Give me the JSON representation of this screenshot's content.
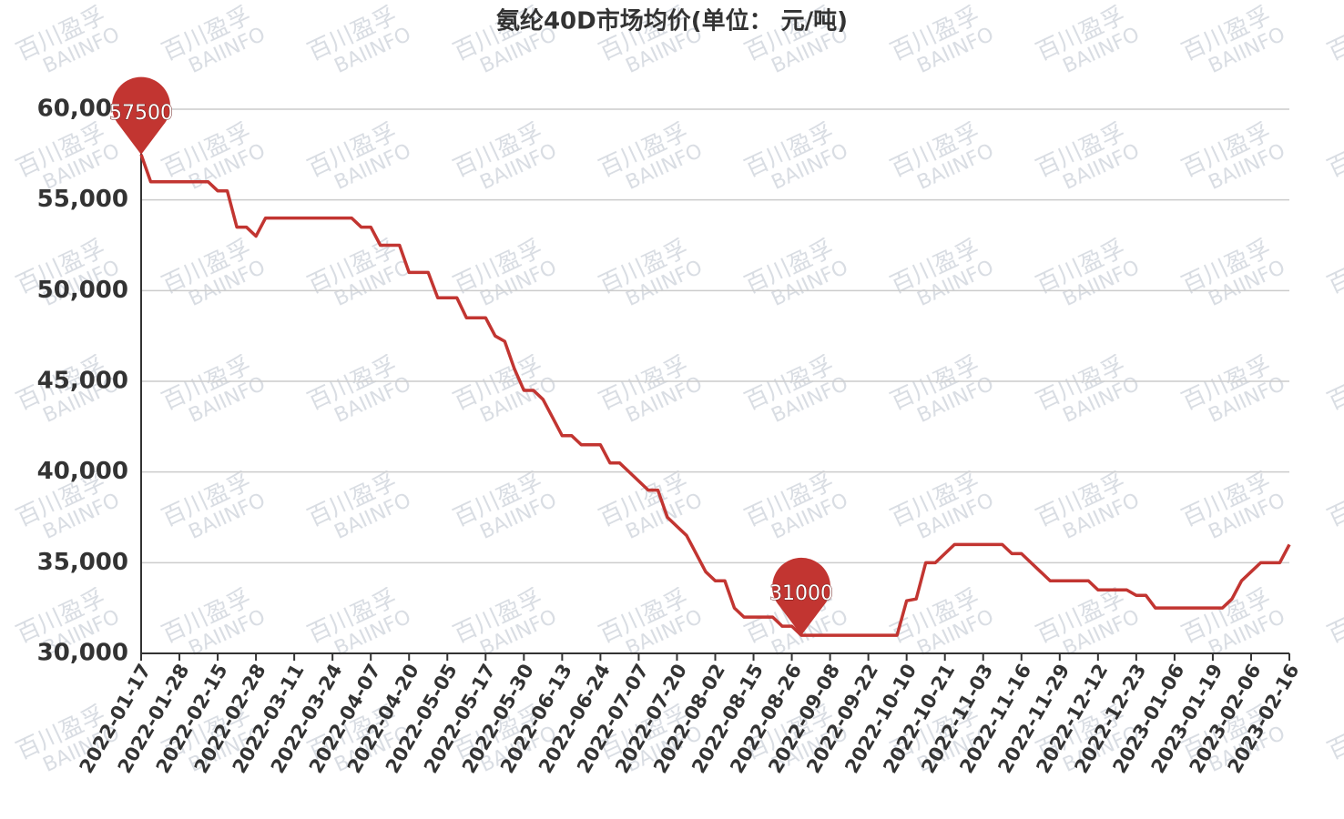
{
  "chart_data": {
    "type": "line",
    "title": "氨纶40D市场均价(单位：  元/吨)",
    "watermark": [
      "百川盈孚",
      "BAIINFO"
    ],
    "categories": [
      "2022-01-17",
      null,
      null,
      null,
      "2022-01-28",
      null,
      null,
      null,
      "2022-02-15",
      null,
      null,
      null,
      "2022-02-28",
      null,
      null,
      null,
      "2022-03-11",
      null,
      null,
      null,
      "2022-03-24",
      null,
      null,
      null,
      "2022-04-07",
      null,
      null,
      null,
      "2022-04-20",
      null,
      null,
      null,
      "2022-05-05",
      null,
      null,
      null,
      "2022-05-17",
      null,
      null,
      null,
      "2022-05-30",
      null,
      null,
      null,
      "2022-06-13",
      null,
      null,
      null,
      "2022-06-24",
      null,
      null,
      null,
      "2022-07-07",
      null,
      null,
      null,
      "2022-07-20",
      null,
      null,
      null,
      "2022-08-02",
      null,
      null,
      null,
      "2022-08-15",
      null,
      null,
      null,
      "2022-08-26",
      null,
      null,
      null,
      "2022-09-08",
      null,
      null,
      null,
      "2022-09-22",
      null,
      null,
      null,
      "2022-10-10",
      null,
      null,
      null,
      "2022-10-21",
      null,
      null,
      null,
      "2022-11-03",
      null,
      null,
      null,
      "2022-11-16",
      null,
      null,
      null,
      "2022-11-29",
      null,
      null,
      null,
      "2022-12-12",
      null,
      null,
      null,
      "2022-12-23",
      null,
      null,
      null,
      "2023-01-06",
      null,
      null,
      null,
      "2023-01-19",
      null,
      null,
      null,
      "2023-02-06",
      null,
      null,
      null,
      "2023-02-16"
    ],
    "series": [
      {
        "name": "氨纶40D",
        "color": "#c23531",
        "values": [
          57500,
          56000,
          56000,
          56000,
          56000,
          56000,
          56000,
          56000,
          55500,
          55500,
          53500,
          53500,
          53000,
          54000,
          54000,
          54000,
          54000,
          54000,
          54000,
          54000,
          54000,
          54000,
          54000,
          53500,
          53500,
          52500,
          52500,
          52500,
          51000,
          51000,
          51000,
          49600,
          49600,
          49600,
          48500,
          48500,
          48500,
          47500,
          47200,
          45700,
          44500,
          44500,
          44000,
          43000,
          42000,
          42000,
          41500,
          41500,
          41500,
          40500,
          40500,
          40000,
          39500,
          39000,
          39000,
          37500,
          37000,
          36500,
          35500,
          34500,
          34000,
          34000,
          32500,
          32000,
          32000,
          32000,
          32000,
          31500,
          31500,
          31000,
          31000,
          31000,
          31000,
          31000,
          31000,
          31000,
          31000,
          31000,
          31000,
          31000,
          32900,
          33000,
          35000,
          35000,
          35500,
          36000,
          36000,
          36000,
          36000,
          36000,
          36000,
          35500,
          35500,
          35000,
          34500,
          34000,
          34000,
          34000,
          34000,
          34000,
          33500,
          33500,
          33500,
          33500,
          33200,
          33200,
          32500,
          32500,
          32500,
          32500,
          32500,
          32500,
          32500,
          32500,
          33000,
          34000,
          34500,
          35000,
          35000,
          35000,
          36000
        ]
      }
    ],
    "ylim": [
      30000,
      60000
    ],
    "yticks": [
      {
        "value": 30000,
        "label": "30,000"
      },
      {
        "value": 35000,
        "label": "35,000"
      },
      {
        "value": 40000,
        "label": "40,000"
      },
      {
        "value": 45000,
        "label": "45,000"
      },
      {
        "value": 50000,
        "label": "50,000"
      },
      {
        "value": 55000,
        "label": "55,000"
      },
      {
        "value": 60000,
        "label": "60,000"
      }
    ],
    "grid": true
  }
}
